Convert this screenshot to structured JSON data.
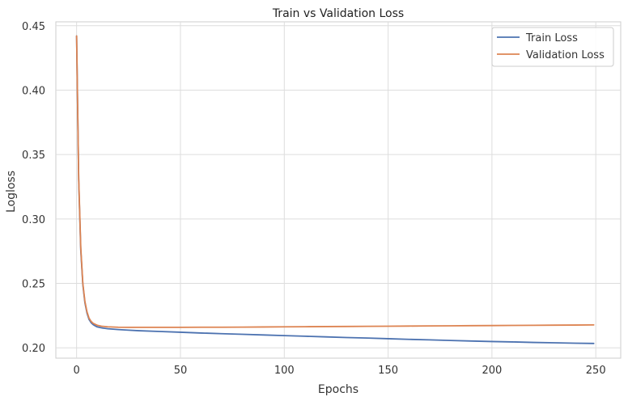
{
  "chart_data": {
    "type": "line",
    "title": "Train vs Validation Loss",
    "xlabel": "Epochs",
    "ylabel": "Logloss",
    "xlim": [
      -10,
      262
    ],
    "ylim": [
      0.192,
      0.453
    ],
    "xticks": [
      0,
      50,
      100,
      150,
      200,
      250
    ],
    "yticks": [
      0.2,
      0.25,
      0.3,
      0.35,
      0.4,
      0.45
    ],
    "ytick_labels": [
      "0.20",
      "0.25",
      "0.30",
      "0.35",
      "0.40",
      "0.45"
    ],
    "xtick_labels": [
      "0",
      "50",
      "100",
      "150",
      "200",
      "250"
    ],
    "grid": true,
    "legend_position": "top-right",
    "series": [
      {
        "name": "Train Loss",
        "color": "#4c72b0",
        "x": [
          0,
          1,
          2,
          3,
          4,
          5,
          6,
          7,
          8,
          9,
          10,
          12,
          15,
          20,
          25,
          30,
          40,
          50,
          60,
          70,
          80,
          90,
          100,
          110,
          120,
          130,
          140,
          150,
          160,
          170,
          180,
          190,
          200,
          210,
          220,
          230,
          240,
          249
        ],
        "y": [
          0.442,
          0.33,
          0.276,
          0.249,
          0.235,
          0.227,
          0.222,
          0.2195,
          0.218,
          0.217,
          0.2162,
          0.2155,
          0.2148,
          0.2142,
          0.2137,
          0.2133,
          0.2127,
          0.2121,
          0.2115,
          0.211,
          0.2105,
          0.21,
          0.2095,
          0.209,
          0.2085,
          0.208,
          0.2076,
          0.2071,
          0.2066,
          0.2062,
          0.2057,
          0.2053,
          0.2049,
          0.2046,
          0.2042,
          0.2039,
          0.2036,
          0.2034
        ]
      },
      {
        "name": "Validation Loss",
        "color": "#dd8452",
        "x": [
          0,
          1,
          2,
          3,
          4,
          5,
          6,
          7,
          8,
          9,
          10,
          12,
          15,
          20,
          25,
          30,
          40,
          50,
          60,
          70,
          80,
          90,
          100,
          110,
          120,
          130,
          140,
          150,
          160,
          170,
          180,
          190,
          200,
          210,
          220,
          230,
          240,
          249
        ],
        "y": [
          0.442,
          0.332,
          0.278,
          0.25,
          0.236,
          0.228,
          0.223,
          0.2205,
          0.219,
          0.2182,
          0.2175,
          0.2168,
          0.2163,
          0.216,
          0.2159,
          0.2159,
          0.2159,
          0.2159,
          0.216,
          0.216,
          0.2161,
          0.2162,
          0.2163,
          0.2164,
          0.2165,
          0.2166,
          0.2167,
          0.2168,
          0.2169,
          0.217,
          0.2171,
          0.2172,
          0.2173,
          0.2174,
          0.2175,
          0.2176,
          0.2177,
          0.2178
        ]
      }
    ]
  }
}
